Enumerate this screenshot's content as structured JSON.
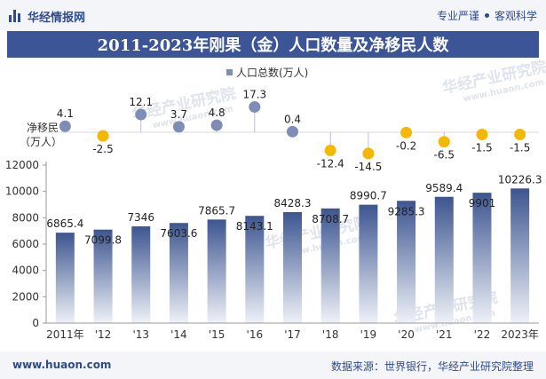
{
  "header": {
    "brand": "华经情报网",
    "tagline_left": "专业严谨",
    "tagline_right": "客观科学"
  },
  "title": "2011-2023年刚果（金）人口数量及净移民人数",
  "legend": {
    "label": "人口总数(万人)"
  },
  "footer": {
    "website": "www.huaon.com",
    "source": "数据来源：世界银行，华经产业研究院整理"
  },
  "watermark": {
    "text": "华经产业研究院",
    "url": "www.huaon.com"
  },
  "colors": {
    "title_bg": "#3b5597",
    "bar_top": "#3d5590",
    "bar_bottom": "#eef1f7",
    "positive_dot": "#7d8db5",
    "negative_dot": "#f5b800"
  },
  "chart_data": [
    {
      "type": "bar",
      "categories": [
        "2011年",
        "'12",
        "'13",
        "'14",
        "'15",
        "'16",
        "'17",
        "'18",
        "'19",
        "'20",
        "'21",
        "'22",
        "2023年"
      ],
      "series": [
        {
          "name": "人口总数(万人)",
          "values": [
            6865.4,
            7099.8,
            7346,
            7603.6,
            7865.7,
            8143.1,
            8428.3,
            8708.7,
            8990.7,
            9285.3,
            9589.4,
            9901,
            10226.3
          ],
          "value_labels": [
            "6865.4",
            "7099.8",
            "7346",
            "7603.6",
            "7865.7",
            "8143.1",
            "8428.3",
            "8708.7",
            "8990.7",
            "9285.3",
            "9589.4",
            "9901",
            "10226.3"
          ]
        }
      ],
      "ylim": [
        0,
        12000
      ],
      "yticks": [
        0,
        2000,
        4000,
        6000,
        8000,
        10000,
        12000
      ],
      "legend_position": "top-center",
      "grid": false
    },
    {
      "type": "scatter",
      "ylabel": "净移民（万人）",
      "categories": [
        "2011年",
        "'12",
        "'13",
        "'14",
        "'15",
        "'16",
        "'17",
        "'18",
        "'19",
        "'20",
        "'21",
        "'22",
        "2023年"
      ],
      "values": [
        4.1,
        -2.5,
        12.1,
        3.7,
        4.8,
        17.3,
        0.4,
        -12.4,
        -14.5,
        -0.2,
        -6.5,
        -1.5,
        -1.5
      ],
      "value_labels": [
        "4.1",
        "-2.5",
        "12.1",
        "3.7",
        "4.8",
        "17.3",
        "0.4",
        "-12.4",
        "-14.5",
        "-0.2",
        "-6.5",
        "-1.5",
        "-1.5"
      ]
    }
  ]
}
